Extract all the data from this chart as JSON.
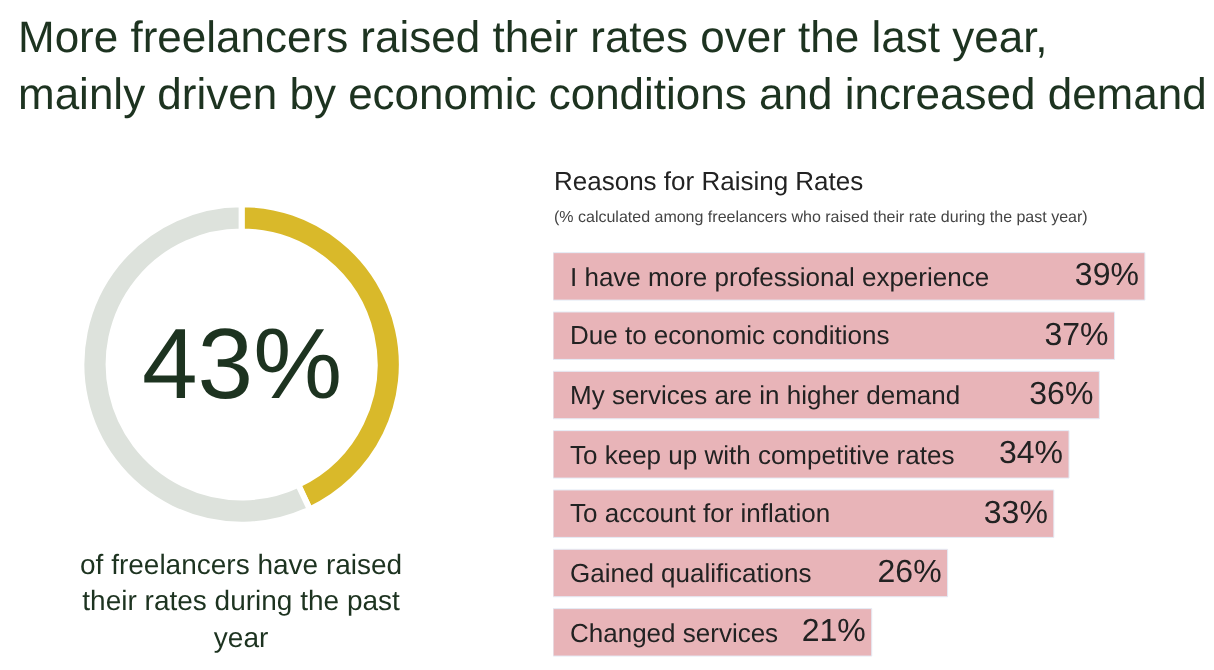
{
  "chart_data": [
    {
      "type": "donut",
      "title": "More freelancers raised their rates over the last year, mainly driven by economic conditions and increased demand",
      "categories": [
        null,
        null
      ],
      "values": [
        43,
        57
      ],
      "colors": [
        "#d9b92a",
        "#dde2dc"
      ],
      "value_labels": [
        "43%",
        null
      ],
      "annotations": [
        "of freelancers have raised their rates during the past year"
      ],
      "legend": false
    },
    {
      "type": "bar",
      "orientation": "horizontal",
      "title": "Reasons for Raising Rates",
      "subtitle": "(% calculated among freelancers who raised their rate during the past year)",
      "categories": [
        "I have more professional experience",
        "Due to economic conditions",
        "My services are in higher demand",
        "To keep up with competitive rates",
        "To account for inflation",
        "Gained qualifications",
        "Changed services"
      ],
      "values": [
        39,
        37,
        36,
        34,
        33,
        26,
        21
      ],
      "color": "#e8b4b8",
      "value_labels": [
        "39%",
        "37%",
        "36%",
        "34%",
        "33%",
        "26%",
        "21%"
      ],
      "legend": false,
      "tick_labels": false
    }
  ]
}
